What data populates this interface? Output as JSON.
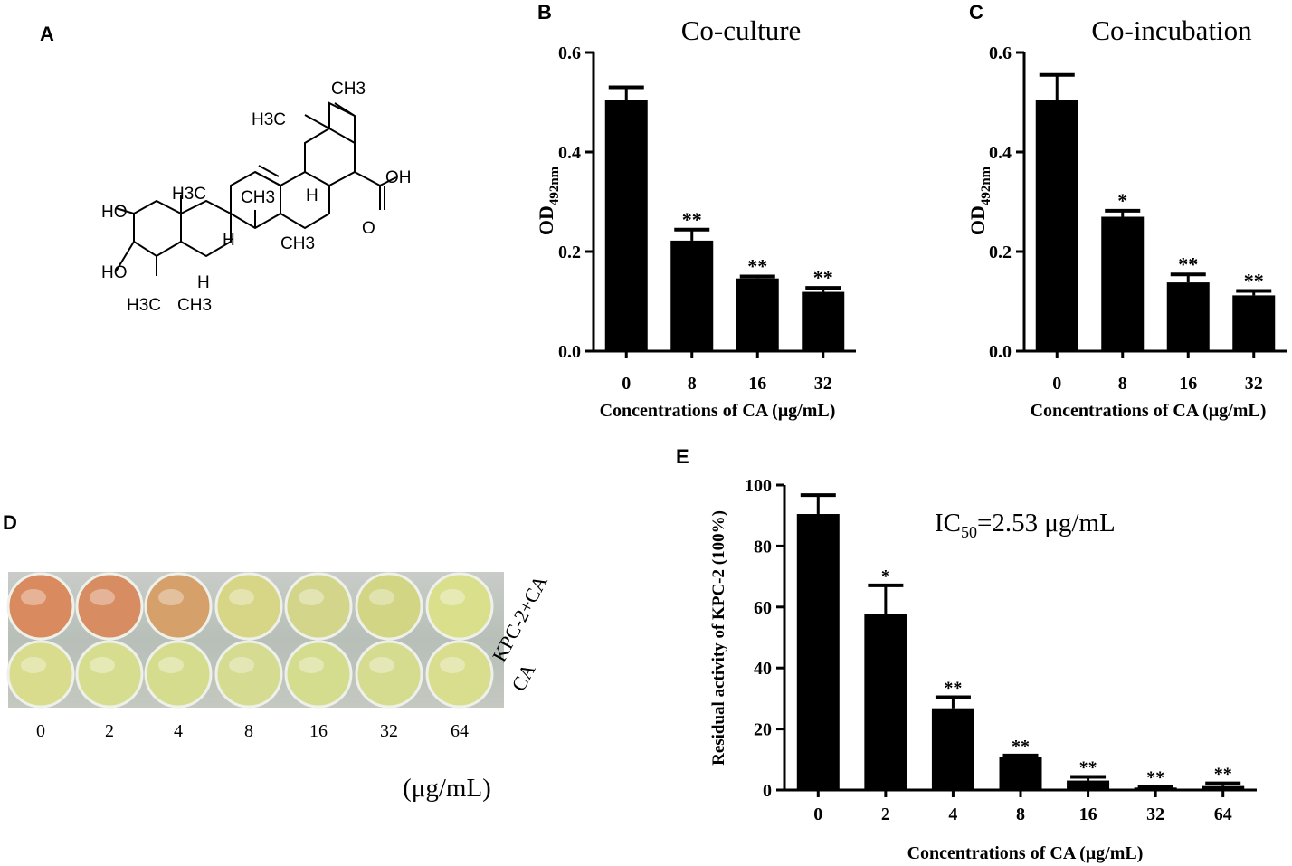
{
  "panel_labels": {
    "a": "A",
    "b": "B",
    "c": "C",
    "d": "D",
    "e": "E"
  },
  "structure": {
    "labels": [
      "CH3",
      "H3C",
      "OH",
      "O",
      "HO",
      "H3C",
      "CH3",
      "H",
      "H",
      "CH3",
      "HO",
      "H",
      "H3C",
      "CH3"
    ],
    "name": "CA"
  },
  "chart_data": [
    {
      "panel": "B",
      "type": "bar",
      "title": "Co-culture",
      "ylabel_main": "OD",
      "ylabel_sub": "492nm",
      "xlabel": "Concentrations of CA (μg/mL)",
      "categories": [
        "0",
        "8",
        "16",
        "32"
      ],
      "values": [
        0.505,
        0.222,
        0.146,
        0.119
      ],
      "errors": [
        0.025,
        0.022,
        0.004,
        0.008
      ],
      "significance": [
        "",
        "**",
        "**",
        "**"
      ],
      "ylim": [
        0,
        0.6
      ],
      "yticks": [
        "0.0",
        "0.2",
        "0.4",
        "0.6"
      ],
      "yticks_values": [
        0,
        0.2,
        0.4,
        0.6
      ]
    },
    {
      "panel": "C",
      "type": "bar",
      "title": "Co-incubation",
      "ylabel_main": "OD",
      "ylabel_sub": "492nm",
      "xlabel": "Concentrations of CA (μg/mL)",
      "categories": [
        "0",
        "8",
        "16",
        "32"
      ],
      "values": [
        0.505,
        0.27,
        0.138,
        0.112
      ],
      "errors": [
        0.05,
        0.012,
        0.016,
        0.009
      ],
      "significance": [
        "",
        "*",
        "**",
        "**"
      ],
      "ylim": [
        0,
        0.6
      ],
      "yticks": [
        "0.0",
        "0.2",
        "0.4",
        "0.6"
      ],
      "yticks_values": [
        0,
        0.2,
        0.4,
        0.6
      ]
    },
    {
      "panel": "E",
      "type": "bar",
      "title": "",
      "annotation_main": "IC",
      "annotation_sub": "50",
      "annotation_rest": "=2.53 μg/mL",
      "ylabel": "Residual activity of KPC-2 (100%)",
      "xlabel": "Concentrations of CA (μg/mL)",
      "categories": [
        "0",
        "2",
        "4",
        "8",
        "16",
        "32",
        "64"
      ],
      "values": [
        90.5,
        57.8,
        26.8,
        10.8,
        3.1,
        0.8,
        1.3
      ],
      "errors": [
        6.2,
        9.3,
        3.6,
        0.5,
        1.2,
        0.3,
        0.9
      ],
      "significance": [
        "",
        "*",
        "**",
        "**",
        "**",
        "**",
        "**"
      ],
      "ylim": [
        0,
        100
      ],
      "yticks": [
        "0",
        "20",
        "40",
        "60",
        "80",
        "100"
      ],
      "yticks_values": [
        0,
        20,
        40,
        60,
        80,
        100
      ]
    }
  ],
  "plate": {
    "row_labels": [
      "KPC-2+CA",
      "CA"
    ],
    "concentrations": [
      "0",
      "2",
      "4",
      "8",
      "16",
      "32",
      "64"
    ],
    "unit": "(μg/mL)",
    "row1_colors": [
      "#d98a5e",
      "#d88c62",
      "#d6a06a",
      "#d7d586",
      "#d3d68a",
      "#d2d584",
      "#dadf8c"
    ],
    "row2_colors": [
      "#d9dc8c",
      "#d7dd8e",
      "#d6dc8e",
      "#d5db90",
      "#d4dc8e",
      "#d5dc90",
      "#d9dd8e"
    ]
  }
}
